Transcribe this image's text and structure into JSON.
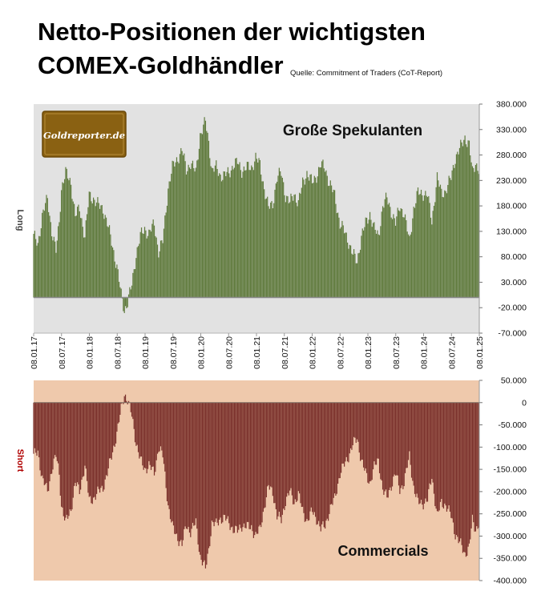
{
  "header": {
    "title_line1": "Netto-Positionen der wichtigsten",
    "title_line2": "COMEX-Goldhändler",
    "source": "Quelle: Commitment of Traders (CoT-Report)"
  },
  "logo": {
    "text": "Goldreporter.de"
  },
  "colors": {
    "long_bars": "#5f7a3c",
    "long_bg": "#e2e2e2",
    "short_bars": "#7a302b",
    "short_bg": "#efc9ac",
    "long_axis_label": "#444444",
    "short_axis_label": "#b00000",
    "logo_bg": "#8a6112"
  },
  "chart_data": [
    {
      "type": "bar",
      "panel": "top",
      "series": [
        {
          "name": "Große Spekulanten",
          "values": []
        }
      ],
      "x_start": "2017-01-08",
      "x_end": "2025-01-08",
      "x_tick_labels": [
        "08.01.17",
        "08.07.17",
        "08.01.18",
        "08.07.18",
        "08.01.19",
        "08.07.19",
        "08.01.20",
        "08.07.20",
        "08.01.21",
        "08.07.21",
        "08.01.22",
        "08.07.22",
        "08.01.23",
        "08.07.23",
        "08.01.24",
        "08.07.24",
        "08.01.25"
      ],
      "ylabel": "Long",
      "ylim": [
        -70000,
        380000
      ],
      "y_tick_labels": [
        "380.000",
        "330.000",
        "280.000",
        "230.000",
        "180.000",
        "130.000",
        "80.000",
        "30.000",
        "-20.000",
        "-70.000"
      ],
      "y_tick_values": [
        380000,
        330000,
        280000,
        230000,
        180000,
        130000,
        80000,
        30000,
        -20000,
        -70000
      ],
      "anchors": [
        [
          "2017-01-08",
          120000
        ],
        [
          "2017-02-05",
          105000
        ],
        [
          "2017-03-05",
          160000
        ],
        [
          "2017-04-09",
          195000
        ],
        [
          "2017-05-07",
          130000
        ],
        [
          "2017-06-04",
          90000
        ],
        [
          "2017-06-25",
          150000
        ],
        [
          "2017-07-09",
          215000
        ],
        [
          "2017-08-06",
          245000
        ],
        [
          "2017-09-10",
          225000
        ],
        [
          "2017-10-08",
          160000
        ],
        [
          "2017-11-05",
          175000
        ],
        [
          "2017-12-10",
          120000
        ],
        [
          "2018-01-07",
          200000
        ],
        [
          "2018-02-04",
          195000
        ],
        [
          "2018-03-11",
          180000
        ],
        [
          "2018-04-08",
          175000
        ],
        [
          "2018-05-06",
          145000
        ],
        [
          "2018-06-03",
          110000
        ],
        [
          "2018-07-08",
          60000
        ],
        [
          "2018-08-05",
          5000
        ],
        [
          "2018-08-26",
          -25000
        ],
        [
          "2018-09-16",
          -10000
        ],
        [
          "2018-10-14",
          25000
        ],
        [
          "2018-11-11",
          85000
        ],
        [
          "2018-12-09",
          120000
        ],
        [
          "2019-01-06",
          135000
        ],
        [
          "2019-02-03",
          125000
        ],
        [
          "2019-03-10",
          145000
        ],
        [
          "2019-04-07",
          90000
        ],
        [
          "2019-05-05",
          110000
        ],
        [
          "2019-06-09",
          215000
        ],
        [
          "2019-07-07",
          255000
        ],
        [
          "2019-08-04",
          270000
        ],
        [
          "2019-09-08",
          290000
        ],
        [
          "2019-10-06",
          250000
        ],
        [
          "2019-11-03",
          265000
        ],
        [
          "2019-12-08",
          245000
        ],
        [
          "2020-01-05",
          320000
        ],
        [
          "2020-02-09",
          345000
        ],
        [
          "2020-03-01",
          305000
        ],
        [
          "2020-03-22",
          250000
        ],
        [
          "2020-04-19",
          255000
        ],
        [
          "2020-05-17",
          240000
        ],
        [
          "2020-06-14",
          240000
        ],
        [
          "2020-07-12",
          245000
        ],
        [
          "2020-08-09",
          260000
        ],
        [
          "2020-09-06",
          265000
        ],
        [
          "2020-10-04",
          250000
        ],
        [
          "2020-11-08",
          255000
        ],
        [
          "2020-12-06",
          255000
        ],
        [
          "2021-01-03",
          275000
        ],
        [
          "2021-01-31",
          260000
        ],
        [
          "2021-02-28",
          215000
        ],
        [
          "2021-03-28",
          175000
        ],
        [
          "2021-04-25",
          185000
        ],
        [
          "2021-05-23",
          235000
        ],
        [
          "2021-06-20",
          245000
        ],
        [
          "2021-07-18",
          200000
        ],
        [
          "2021-08-15",
          185000
        ],
        [
          "2021-09-12",
          205000
        ],
        [
          "2021-10-10",
          185000
        ],
        [
          "2021-11-07",
          225000
        ],
        [
          "2021-12-05",
          245000
        ],
        [
          "2022-01-09",
          225000
        ],
        [
          "2022-02-06",
          240000
        ],
        [
          "2022-03-06",
          260000
        ],
        [
          "2022-04-03",
          255000
        ],
        [
          "2022-05-01",
          225000
        ],
        [
          "2022-06-05",
          200000
        ],
        [
          "2022-07-10",
          145000
        ],
        [
          "2022-08-07",
          130000
        ],
        [
          "2022-09-04",
          110000
        ],
        [
          "2022-10-02",
          85000
        ],
        [
          "2022-10-30",
          70000
        ],
        [
          "2022-11-27",
          120000
        ],
        [
          "2022-12-25",
          145000
        ],
        [
          "2023-01-22",
          165000
        ],
        [
          "2023-02-19",
          135000
        ],
        [
          "2023-03-19",
          120000
        ],
        [
          "2023-04-16",
          180000
        ],
        [
          "2023-05-14",
          195000
        ],
        [
          "2023-06-11",
          170000
        ],
        [
          "2023-07-09",
          145000
        ],
        [
          "2023-08-06",
          180000
        ],
        [
          "2023-09-03",
          165000
        ],
        [
          "2023-10-08",
          110000
        ],
        [
          "2023-11-05",
          175000
        ],
        [
          "2023-12-03",
          205000
        ],
        [
          "2024-01-07",
          205000
        ],
        [
          "2024-02-04",
          200000
        ],
        [
          "2024-03-03",
          150000
        ],
        [
          "2024-04-07",
          235000
        ],
        [
          "2024-05-05",
          205000
        ],
        [
          "2024-06-02",
          210000
        ],
        [
          "2024-07-07",
          235000
        ],
        [
          "2024-08-04",
          275000
        ],
        [
          "2024-09-08",
          295000
        ],
        [
          "2024-10-06",
          315000
        ],
        [
          "2024-11-03",
          300000
        ],
        [
          "2024-11-24",
          245000
        ],
        [
          "2024-12-15",
          265000
        ],
        [
          "2025-01-08",
          250000
        ]
      ]
    },
    {
      "type": "bar",
      "panel": "bottom",
      "series": [
        {
          "name": "Commercials",
          "values": []
        }
      ],
      "x_start": "2017-01-08",
      "x_end": "2025-01-08",
      "ylabel": "Short",
      "ylim": [
        -400000,
        50000
      ],
      "y_tick_labels": [
        "50.000",
        "0",
        "-50.000",
        "-100.000",
        "-150.000",
        "-200.000",
        "-250.000",
        "-300.000",
        "-350.000",
        "-400.000"
      ],
      "y_tick_values": [
        50000,
        0,
        -50000,
        -100000,
        -150000,
        -200000,
        -250000,
        -300000,
        -350000,
        -400000
      ],
      "anchors": [
        [
          "2017-01-08",
          -120000
        ],
        [
          "2017-02-05",
          -110000
        ],
        [
          "2017-03-05",
          -170000
        ],
        [
          "2017-04-09",
          -200000
        ],
        [
          "2017-05-07",
          -150000
        ],
        [
          "2017-06-04",
          -120000
        ],
        [
          "2017-06-25",
          -160000
        ],
        [
          "2017-07-09",
          -230000
        ],
        [
          "2017-08-06",
          -270000
        ],
        [
          "2017-09-10",
          -240000
        ],
        [
          "2017-10-08",
          -180000
        ],
        [
          "2017-11-05",
          -200000
        ],
        [
          "2017-12-10",
          -140000
        ],
        [
          "2018-01-07",
          -220000
        ],
        [
          "2018-02-04",
          -215000
        ],
        [
          "2018-03-11",
          -200000
        ],
        [
          "2018-04-08",
          -190000
        ],
        [
          "2018-05-06",
          -160000
        ],
        [
          "2018-06-03",
          -120000
        ],
        [
          "2018-07-08",
          -70000
        ],
        [
          "2018-08-05",
          -15000
        ],
        [
          "2018-08-26",
          20000
        ],
        [
          "2018-09-16",
          5000
        ],
        [
          "2018-10-14",
          -30000
        ],
        [
          "2018-11-11",
          -90000
        ],
        [
          "2018-12-09",
          -130000
        ],
        [
          "2019-01-06",
          -150000
        ],
        [
          "2019-02-03",
          -140000
        ],
        [
          "2019-03-10",
          -160000
        ],
        [
          "2019-04-07",
          -100000
        ],
        [
          "2019-05-05",
          -120000
        ],
        [
          "2019-06-09",
          -230000
        ],
        [
          "2019-07-07",
          -280000
        ],
        [
          "2019-08-04",
          -300000
        ],
        [
          "2019-09-08",
          -320000
        ],
        [
          "2019-10-06",
          -275000
        ],
        [
          "2019-11-03",
          -290000
        ],
        [
          "2019-12-08",
          -270000
        ],
        [
          "2020-01-05",
          -345000
        ],
        [
          "2020-02-09",
          -375000
        ],
        [
          "2020-03-01",
          -330000
        ],
        [
          "2020-03-22",
          -270000
        ],
        [
          "2020-04-19",
          -275000
        ],
        [
          "2020-05-17",
          -260000
        ],
        [
          "2020-06-14",
          -260000
        ],
        [
          "2020-07-12",
          -270000
        ],
        [
          "2020-08-09",
          -285000
        ],
        [
          "2020-09-06",
          -290000
        ],
        [
          "2020-10-04",
          -275000
        ],
        [
          "2020-11-08",
          -280000
        ],
        [
          "2020-12-06",
          -280000
        ],
        [
          "2021-01-03",
          -300000
        ],
        [
          "2021-01-31",
          -285000
        ],
        [
          "2021-02-28",
          -235000
        ],
        [
          "2021-03-28",
          -190000
        ],
        [
          "2021-04-25",
          -200000
        ],
        [
          "2021-05-23",
          -255000
        ],
        [
          "2021-06-20",
          -265000
        ],
        [
          "2021-07-18",
          -220000
        ],
        [
          "2021-08-15",
          -200000
        ],
        [
          "2021-09-12",
          -225000
        ],
        [
          "2021-10-10",
          -205000
        ],
        [
          "2021-11-07",
          -245000
        ],
        [
          "2021-12-05",
          -265000
        ],
        [
          "2022-01-09",
          -245000
        ],
        [
          "2022-02-06",
          -260000
        ],
        [
          "2022-03-06",
          -285000
        ],
        [
          "2022-04-03",
          -275000
        ],
        [
          "2022-05-01",
          -245000
        ],
        [
          "2022-06-05",
          -215000
        ],
        [
          "2022-07-10",
          -160000
        ],
        [
          "2022-08-07",
          -140000
        ],
        [
          "2022-09-04",
          -120000
        ],
        [
          "2022-10-02",
          -95000
        ],
        [
          "2022-10-30",
          -80000
        ],
        [
          "2022-11-27",
          -130000
        ],
        [
          "2022-12-25",
          -160000
        ],
        [
          "2023-01-22",
          -180000
        ],
        [
          "2023-02-19",
          -145000
        ],
        [
          "2023-03-19",
          -130000
        ],
        [
          "2023-04-16",
          -195000
        ],
        [
          "2023-05-14",
          -215000
        ],
        [
          "2023-06-11",
          -185000
        ],
        [
          "2023-07-09",
          -160000
        ],
        [
          "2023-08-06",
          -195000
        ],
        [
          "2023-09-03",
          -180000
        ],
        [
          "2023-10-08",
          -120000
        ],
        [
          "2023-11-05",
          -190000
        ],
        [
          "2023-12-03",
          -225000
        ],
        [
          "2024-01-07",
          -225000
        ],
        [
          "2024-02-04",
          -220000
        ],
        [
          "2024-03-03",
          -165000
        ],
        [
          "2024-04-07",
          -255000
        ],
        [
          "2024-05-05",
          -225000
        ],
        [
          "2024-06-02",
          -230000
        ],
        [
          "2024-07-07",
          -255000
        ],
        [
          "2024-08-04",
          -295000
        ],
        [
          "2024-09-08",
          -320000
        ],
        [
          "2024-10-06",
          -340000
        ],
        [
          "2024-11-03",
          -325000
        ],
        [
          "2024-11-24",
          -265000
        ],
        [
          "2024-12-15",
          -285000
        ],
        [
          "2025-01-08",
          -270000
        ]
      ]
    }
  ]
}
